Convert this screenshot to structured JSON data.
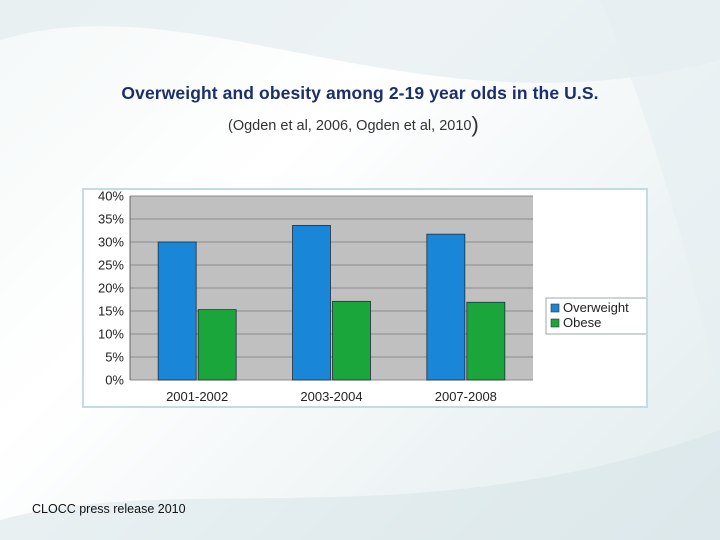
{
  "slide": {
    "title": "Overweight and obesity among 2-19 year olds in the U.S.",
    "subtitle": "(Ogden et al, 2006, Ogden et al, 2010",
    "subtitle_close": ")",
    "footer": "CLOCC press release 2010"
  },
  "colors": {
    "title": "#1c2f6b",
    "plot_bg": "#c0c0c0",
    "overweight": "#1a86d8",
    "obese": "#1aa63a"
  },
  "chart_data": {
    "type": "bar",
    "title": "",
    "xlabel": "",
    "ylabel": "",
    "categories": [
      "2001-2002",
      "2003-2004",
      "2007-2008"
    ],
    "series": [
      {
        "name": "Overweight",
        "values": [
          30,
          33.6,
          31.7
        ],
        "color": "#1a86d8"
      },
      {
        "name": "Obese",
        "values": [
          15.3,
          17.1,
          16.9
        ],
        "color": "#1aa63a"
      }
    ],
    "ylim": [
      0,
      40
    ],
    "y_ticks": [
      "0%",
      "5%",
      "10%",
      "15%",
      "20%",
      "25%",
      "30%",
      "35%",
      "40%"
    ],
    "grid": true,
    "legend_position": "right"
  }
}
